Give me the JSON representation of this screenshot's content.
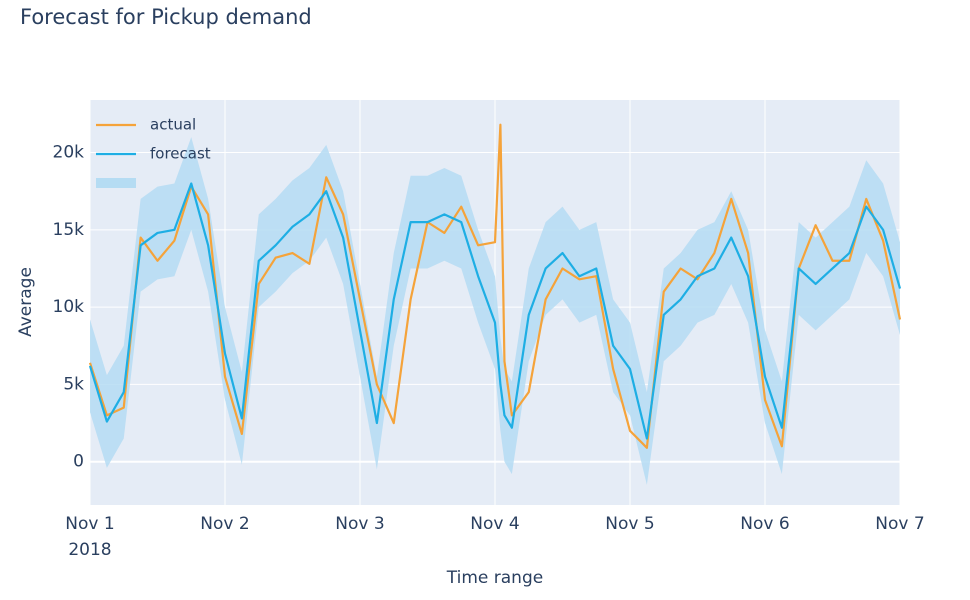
{
  "chart_data": {
    "type": "line",
    "title": "Forecast for Pickup demand",
    "x_label": "Time range",
    "y_label": "Average",
    "x": [
      0,
      0.125,
      0.25,
      0.375,
      0.5,
      0.625,
      0.75,
      0.875,
      1,
      1.125,
      1.25,
      1.375,
      1.5,
      1.625,
      1.75,
      1.875,
      2,
      2.125,
      2.25,
      2.375,
      2.5,
      2.625,
      2.75,
      2.875,
      3,
      3.04,
      3.07,
      3.125,
      3.25,
      3.375,
      3.5,
      3.625,
      3.75,
      3.875,
      4,
      4.125,
      4.25,
      4.375,
      4.5,
      4.625,
      4.75,
      4.875,
      5,
      5.125,
      5.25,
      5.375,
      5.5,
      5.625,
      5.75,
      5.875,
      6
    ],
    "xlim": [
      0,
      6
    ],
    "xticks": [
      {
        "value": 0,
        "label": "Nov 1"
      },
      {
        "value": 1,
        "label": "Nov 2"
      },
      {
        "value": 2,
        "label": "Nov 3"
      },
      {
        "value": 3,
        "label": "Nov 4"
      },
      {
        "value": 4,
        "label": "Nov 5"
      },
      {
        "value": 5,
        "label": "Nov 6"
      },
      {
        "value": 6,
        "label": "Nov 7"
      }
    ],
    "year_label": "2018",
    "ylim": [
      -2800,
      23400
    ],
    "yticks": [
      0,
      {
        "value": 5000,
        "label": "5k"
      },
      {
        "value": 10000,
        "label": "10k"
      },
      {
        "value": 15000,
        "label": "15k"
      },
      {
        "value": 20000,
        "label": "20k"
      }
    ],
    "grid": true,
    "legend": "top-left",
    "band": {
      "color": "#b5dcf3",
      "upper": [
        9200,
        5600,
        7500,
        17000,
        17800,
        18000,
        21000,
        17000,
        10000,
        5800,
        16000,
        17000,
        18200,
        19000,
        20500,
        17500,
        11500,
        5500,
        13500,
        18500,
        18500,
        19000,
        18500,
        15000,
        12000,
        8000,
        6000,
        5200,
        12500,
        15500,
        16500,
        15000,
        15500,
        10500,
        9000,
        4500,
        12500,
        13500,
        15000,
        15500,
        17500,
        15000,
        8500,
        5200,
        15500,
        14500,
        15500,
        16500,
        19500,
        18000,
        14200
      ],
      "lower": [
        3200,
        -400,
        1500,
        11000,
        11800,
        12000,
        15000,
        11000,
        4000,
        -200,
        10000,
        11000,
        12200,
        13000,
        14500,
        11500,
        5500,
        -500,
        7500,
        12500,
        12500,
        13000,
        12500,
        9000,
        6000,
        2000,
        0,
        -800,
        6500,
        9500,
        10500,
        9000,
        9500,
        4500,
        3000,
        -1500,
        6500,
        7500,
        9000,
        9500,
        11500,
        9000,
        2500,
        -800,
        9500,
        8500,
        9500,
        10500,
        13500,
        12000,
        8200
      ]
    },
    "series": [
      {
        "name": "actual",
        "color": "#f5a33a",
        "values": [
          6400,
          3000,
          3500,
          14500,
          13000,
          14300,
          17800,
          16000,
          5500,
          1800,
          11500,
          13200,
          13500,
          12800,
          18400,
          16000,
          10500,
          5000,
          2500,
          10500,
          15500,
          14800,
          16500,
          14000,
          14200,
          21800,
          6500,
          3000,
          4500,
          10500,
          12500,
          11800,
          12000,
          6000,
          2000,
          900,
          11000,
          12500,
          11800,
          13500,
          17000,
          13500,
          4000,
          1000,
          12500,
          15300,
          13000,
          13000,
          17000,
          14300,
          9200
        ]
      },
      {
        "name": "forecast",
        "color": "#1eaee4",
        "values": [
          6200,
          2600,
          4500,
          14000,
          14800,
          15000,
          18000,
          14000,
          7000,
          2800,
          13000,
          14000,
          15200,
          16000,
          17500,
          14500,
          8500,
          2500,
          10500,
          15500,
          15500,
          16000,
          15500,
          12000,
          9000,
          5000,
          3000,
          2200,
          9500,
          12500,
          13500,
          12000,
          12500,
          7500,
          6000,
          1500,
          9500,
          10500,
          12000,
          12500,
          14500,
          12000,
          5500,
          2200,
          12500,
          11500,
          12500,
          13500,
          16500,
          15000,
          11200
        ]
      }
    ]
  }
}
